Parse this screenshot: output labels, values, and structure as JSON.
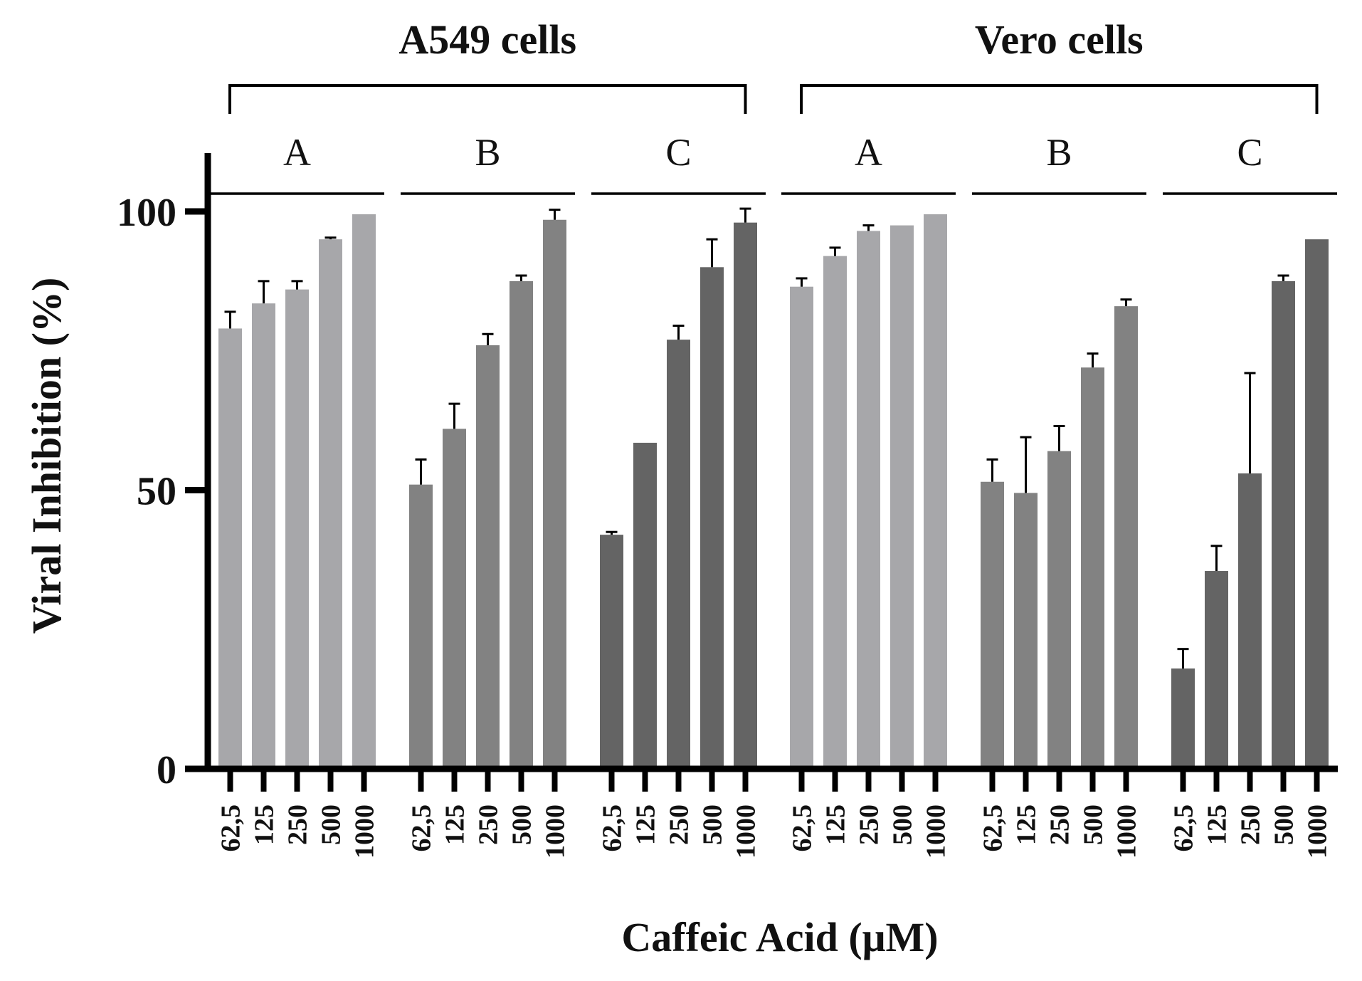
{
  "chart_data": {
    "type": "bar",
    "xlabel": "Caffeic Acid (μM)",
    "ylabel": "Viral Inhibition (%)",
    "ylim": [
      0,
      110
    ],
    "yticks": [
      0,
      50,
      100
    ],
    "categories": [
      "62,5",
      "125",
      "250",
      "500",
      "1000"
    ],
    "cell_lines": [
      {
        "name": "A549 cells",
        "groups": [
          {
            "label": "A",
            "color": "#a7a7aa",
            "values": [
              79,
              83.5,
              86,
              95,
              99.5
            ],
            "errors": [
              3,
              4,
              1.5,
              0.3,
              0
            ]
          },
          {
            "label": "B",
            "color": "#828282",
            "values": [
              51,
              61,
              76,
              87.5,
              98.5
            ],
            "errors": [
              4.5,
              4.5,
              2,
              1,
              1.8
            ]
          },
          {
            "label": "C",
            "color": "#646464",
            "values": [
              42,
              58.5,
              77,
              90,
              98
            ],
            "errors": [
              0.5,
              0,
              2.5,
              5,
              2.5
            ]
          }
        ]
      },
      {
        "name": "Vero cells",
        "groups": [
          {
            "label": "A",
            "color": "#a7a7aa",
            "values": [
              86.5,
              92,
              96.5,
              97.5,
              99.5
            ],
            "errors": [
              1.5,
              1.5,
              1,
              0,
              0
            ]
          },
          {
            "label": "B",
            "color": "#828282",
            "values": [
              51.5,
              49.5,
              57,
              72,
              83
            ],
            "errors": [
              4,
              10,
              4.5,
              2.5,
              1.2
            ]
          },
          {
            "label": "C",
            "color": "#646464",
            "values": [
              18,
              35.5,
              53,
              87.5,
              95
            ],
            "errors": [
              3.5,
              4.5,
              18,
              1,
              0
            ]
          }
        ]
      }
    ]
  }
}
